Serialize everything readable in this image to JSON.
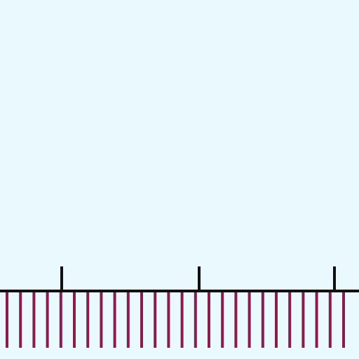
{
  "scene": {
    "sky_color": "#e9f9fe",
    "ground_line_color": "#111111",
    "post_color": "#111111",
    "fence_color": "#8b1a4f",
    "fence_post_count": 26,
    "marker_post_count": 3
  }
}
